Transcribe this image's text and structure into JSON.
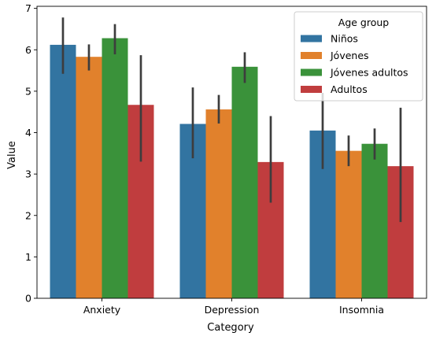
{
  "chart_data": {
    "type": "bar",
    "categories": [
      "Anxiety",
      "Depression",
      "Insomnia"
    ],
    "series": [
      {
        "name": "Niños",
        "color": "#3274a1",
        "values": [
          6.12,
          4.21,
          4.05
        ],
        "ci_low": [
          5.42,
          3.38,
          3.12
        ],
        "ci_high": [
          6.78,
          5.09,
          4.96
        ]
      },
      {
        "name": "Jóvenes",
        "color": "#e1812c",
        "values": [
          5.83,
          4.56,
          3.56
        ],
        "ci_low": [
          5.5,
          4.22,
          3.19
        ],
        "ci_high": [
          6.13,
          4.91,
          3.93
        ]
      },
      {
        "name": "Jóvenes adultos",
        "color": "#3a923a",
        "values": [
          6.28,
          5.59,
          3.73
        ],
        "ci_low": [
          5.89,
          5.2,
          3.35
        ],
        "ci_high": [
          6.62,
          5.94,
          4.1
        ]
      },
      {
        "name": "Adultos",
        "color": "#c03d3e",
        "values": [
          4.67,
          3.29,
          3.19
        ],
        "ci_low": [
          3.3,
          2.31,
          1.84
        ],
        "ci_high": [
          5.87,
          4.4,
          4.6
        ]
      }
    ],
    "xlabel": "Category",
    "ylabel": "Value",
    "ylim": [
      0,
      7.05
    ],
    "yticks": [
      0,
      1,
      2,
      3,
      4,
      5,
      6,
      7
    ],
    "legend_title": "Age group",
    "legend_position": "top-right",
    "grid": false
  }
}
